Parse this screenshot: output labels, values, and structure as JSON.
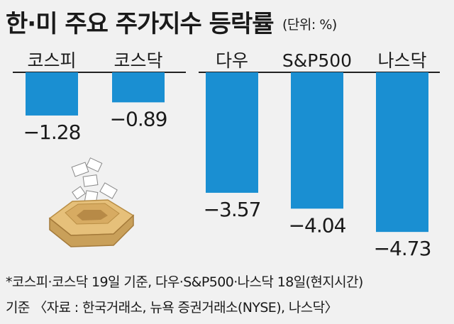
{
  "title": "한·미 주요 주가지수 등락률",
  "unit": "(단위: %)",
  "chart_data": {
    "type": "bar",
    "groups": [
      {
        "categories": [
          "코스피",
          "코스닥"
        ],
        "values": [
          -1.28,
          -0.89
        ]
      },
      {
        "categories": [
          "다우",
          "S&P500",
          "나스닥"
        ],
        "values": [
          -3.57,
          -4.04,
          -4.73
        ]
      }
    ],
    "value_labels": [
      "−1.28",
      "−0.89",
      "−3.57",
      "−4.04",
      "−4.73"
    ],
    "bar_color": "#1a8fd2",
    "ylim": [
      -5.2,
      0
    ]
  },
  "footnote": {
    "line1": "*코스피·코스닥 19일 기준, 다우·S&P500·나스닥 18일(현지시간)",
    "line2": "기준 〈자료 : 한국거래소, 뉴욕 증권거래소(NYSE), 나스닥〉"
  }
}
